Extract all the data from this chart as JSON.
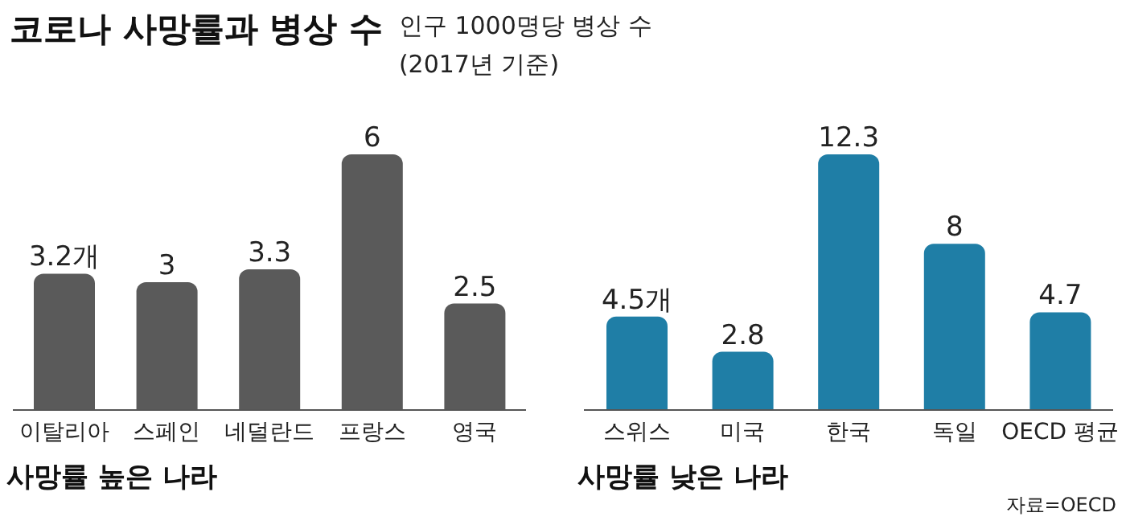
{
  "chart_data": [
    {
      "type": "bar",
      "title": "코로나 사망률과 병상 수",
      "subtitle": "인구 1000명당 병상 수 (2017년 기준)",
      "xlabel": "사망률 높은 나라",
      "categories": [
        "이탈리아",
        "스페인",
        "네덜란드",
        "프랑스",
        "영국"
      ],
      "values": [
        3.2,
        3,
        3.3,
        6,
        2.5
      ],
      "color": "#5a5a5a",
      "value_labels": [
        "3.2개",
        "3",
        "3.3",
        "6",
        "2.5"
      ]
    },
    {
      "type": "bar",
      "xlabel": "사망률 낮은 나라",
      "categories": [
        "스위스",
        "미국",
        "한국",
        "독일",
        "OECD 평균"
      ],
      "values": [
        4.5,
        2.8,
        12.3,
        8,
        4.7
      ],
      "color": "#1f7ea6",
      "value_labels": [
        "4.5개",
        "2.8",
        "12.3",
        "8",
        "4.7"
      ],
      "annotations": [
        "자료=OECD"
      ]
    }
  ]
}
